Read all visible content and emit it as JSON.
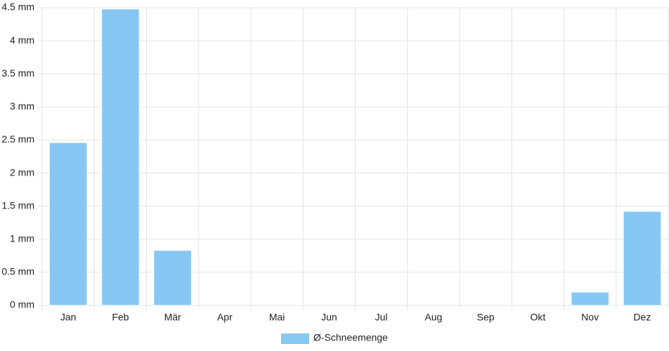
{
  "chart_data": {
    "type": "bar",
    "categories": [
      "Jan",
      "Feb",
      "Mär",
      "Apr",
      "Mai",
      "Jun",
      "Jul",
      "Aug",
      "Sep",
      "Okt",
      "Nov",
      "Dez"
    ],
    "series": [
      {
        "name": "Ø-Schneemenge",
        "color": "#86c7f3",
        "values": [
          2.46,
          4.48,
          0.83,
          0,
          0,
          0,
          0,
          0,
          0,
          0,
          0.2,
          1.42
        ]
      }
    ],
    "ylim": [
      0,
      4.5
    ],
    "yticks": [
      {
        "value": 0,
        "label": "0 mm"
      },
      {
        "value": 0.5,
        "label": "0.5 mm"
      },
      {
        "value": 1,
        "label": "1 mm"
      },
      {
        "value": 1.5,
        "label": "1.5 mm"
      },
      {
        "value": 2,
        "label": "2 mm"
      },
      {
        "value": 2.5,
        "label": "2.5 mm"
      },
      {
        "value": 3,
        "label": "3 mm"
      },
      {
        "value": 3.5,
        "label": "3.5 mm"
      },
      {
        "value": 4,
        "label": "4 mm"
      },
      {
        "value": 4.5,
        "label": "4.5 mm"
      }
    ],
    "grid": true,
    "legend": "bottom"
  }
}
